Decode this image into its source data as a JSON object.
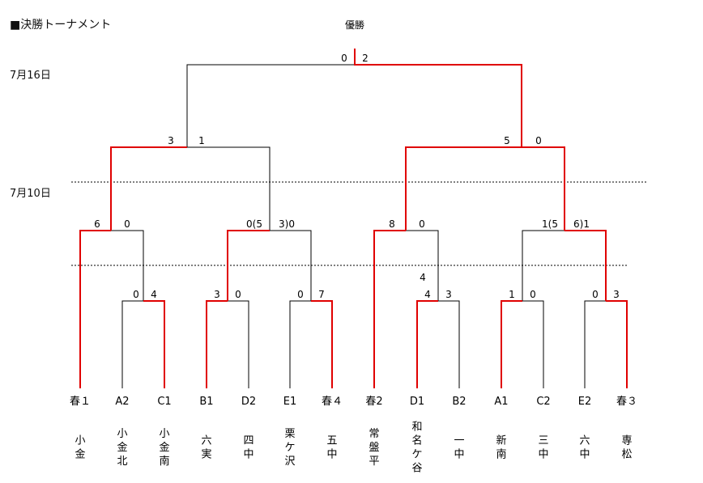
{
  "page_title": "■決勝トーナメント",
  "champion_label": "優勝",
  "dates": {
    "upper": "7月16日",
    "lower": "7月10日"
  },
  "colors": {
    "win": "#e00000",
    "line": "#000000"
  },
  "teams": [
    {
      "code": "春１",
      "name": "小金"
    },
    {
      "code": "A2",
      "name": "小金北"
    },
    {
      "code": "C1",
      "name": "小金南"
    },
    {
      "code": "B1",
      "name": "六実"
    },
    {
      "code": "D2",
      "name": "四中"
    },
    {
      "code": "E1",
      "name": "栗ケ沢"
    },
    {
      "code": "春４",
      "name": "五中"
    },
    {
      "code": "春2",
      "name": "常盤平"
    },
    {
      "code": "D1",
      "name": "和名ケ谷"
    },
    {
      "code": "B2",
      "name": "一中"
    },
    {
      "code": "A1",
      "name": "新南"
    },
    {
      "code": "C2",
      "name": "三中"
    },
    {
      "code": "E2",
      "name": "六中"
    },
    {
      "code": "春３",
      "name": "専松"
    }
  ],
  "scores": {
    "r1_m1": [
      "0",
      "4"
    ],
    "r1_m2": [
      "3",
      "0"
    ],
    "r1_m3": [
      "0",
      "7"
    ],
    "r1_m4": [
      "4",
      "3"
    ],
    "r1_m4_extra": "4",
    "r1_m5": [
      "1",
      "0"
    ],
    "r1_m6": [
      "0",
      "3"
    ],
    "r2_m1": [
      "6",
      "0"
    ],
    "r2_m2": [
      "0(5",
      "3)0"
    ],
    "r2_m3": [
      "8",
      "0"
    ],
    "r2_m4": [
      "1(5",
      "6)1"
    ],
    "r3_m1": [
      "3",
      "1"
    ],
    "r3_m2": [
      "5",
      "0"
    ],
    "final": [
      "0",
      "2"
    ]
  }
}
